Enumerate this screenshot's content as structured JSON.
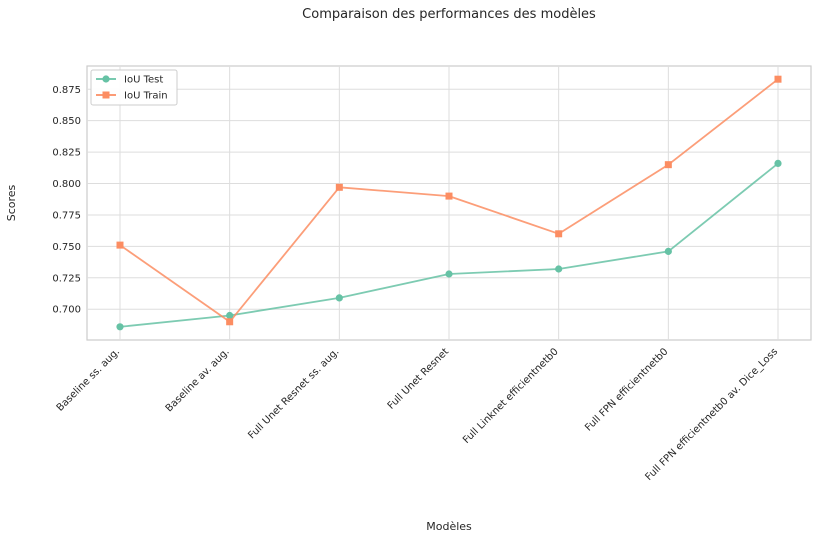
{
  "colors": {
    "test": "#66c2a5",
    "train": "#fc8d62",
    "grid": "#dddddd",
    "frame": "#cccccc"
  },
  "chart_data": {
    "type": "line",
    "title": "Comparaison des performances des modèles",
    "xlabel": "Modèles",
    "ylabel": "Scores",
    "categories": [
      "Baseline ss. aug.",
      "Baseline av. aug.",
      "Full Unet Resnet ss. aug.",
      "Full Unet Resnet",
      "Full Linknet efficientnetb0",
      "Full FPN efficientnetb0",
      "Full FPN efficientnetb0 av. Dice_Loss"
    ],
    "series": [
      {
        "name": "IoU Test",
        "marker": "circle",
        "values": [
          0.686,
          0.695,
          0.709,
          0.728,
          0.732,
          0.746,
          0.816
        ]
      },
      {
        "name": "IoU Train",
        "marker": "square",
        "values": [
          0.751,
          0.69,
          0.797,
          0.79,
          0.76,
          0.815,
          0.883
        ]
      }
    ],
    "yticks": [
      0.7,
      0.725,
      0.75,
      0.775,
      0.8,
      0.825,
      0.85,
      0.875
    ],
    "ytick_labels": [
      "0.700",
      "0.725",
      "0.750",
      "0.775",
      "0.800",
      "0.825",
      "0.850",
      "0.875"
    ],
    "ylim": [
      0.6755,
      0.8935
    ],
    "grid": true,
    "legend": "upper-left"
  }
}
